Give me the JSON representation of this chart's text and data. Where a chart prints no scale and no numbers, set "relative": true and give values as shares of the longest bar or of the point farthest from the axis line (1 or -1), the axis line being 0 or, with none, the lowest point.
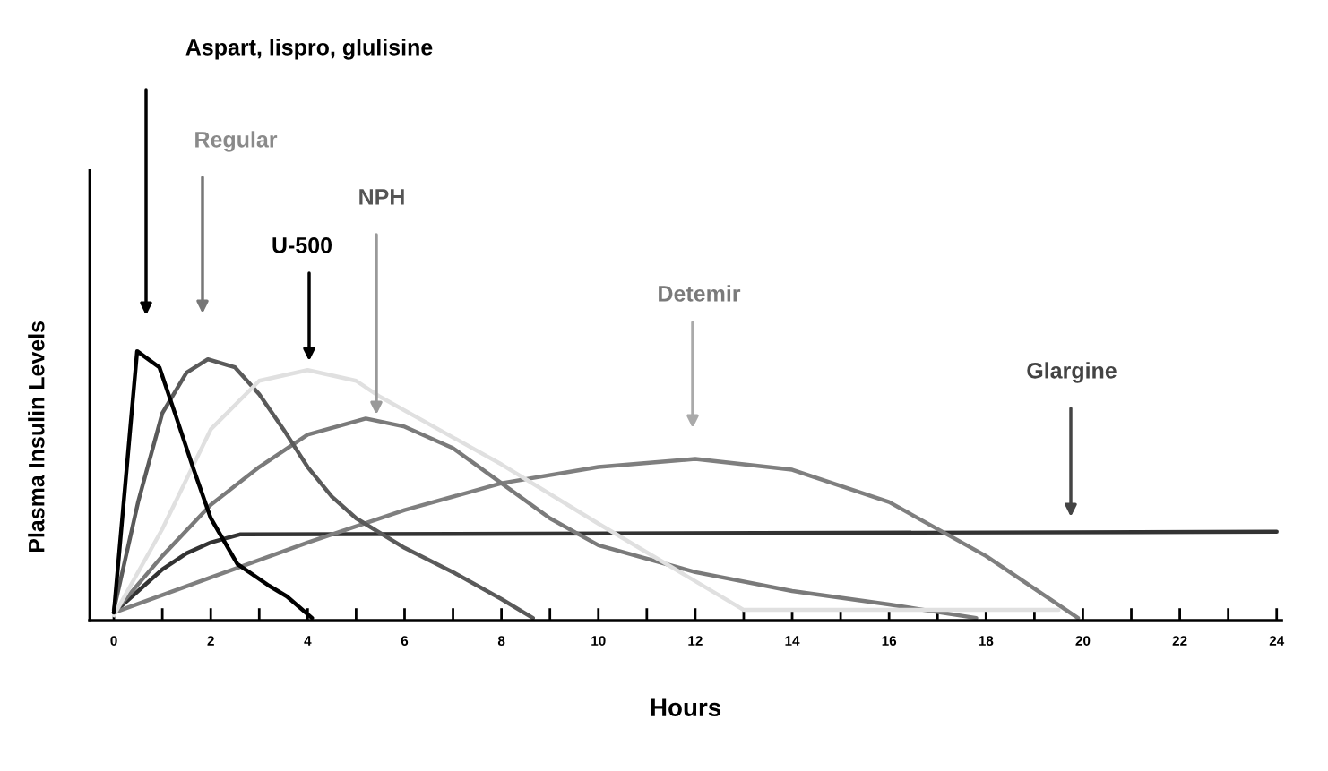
{
  "chart_data": {
    "type": "line",
    "relative": true,
    "xlabel": "Hours",
    "ylabel": "Plasma Insulin Levels",
    "xlim": [
      -0.5,
      24.1
    ],
    "xticks": [
      0,
      {
        "value": 1,
        "label": null
      },
      2,
      {
        "value": 3,
        "label": null
      },
      4,
      {
        "value": 5,
        "label": null
      },
      6,
      {
        "value": 7,
        "label": null
      },
      8,
      {
        "value": 9,
        "label": null
      },
      10,
      {
        "value": 11,
        "label": null
      },
      12,
      {
        "value": 13,
        "label": null
      },
      14,
      {
        "value": 15,
        "label": null
      },
      16,
      {
        "value": 17,
        "label": null
      },
      18,
      {
        "value": 19,
        "label": null
      },
      20,
      {
        "value": 21,
        "label": null
      },
      22,
      {
        "value": 23,
        "label": null
      },
      24
    ],
    "grid": false,
    "legend": false,
    "marker": "none",
    "line_style": "solid",
    "series": [
      {
        "color": "#333333",
        "x": [
          0,
          0.5,
          1,
          1.5,
          2,
          2.6,
          24
        ],
        "values": [
          0.03,
          0.11,
          0.19,
          0.25,
          0.29,
          0.32,
          0.33
        ]
      },
      {
        "color": "#7f7f7f",
        "x": [
          0,
          2,
          4,
          6,
          8,
          10,
          12,
          14,
          16,
          18,
          19.9
        ],
        "values": [
          0.03,
          0.16,
          0.29,
          0.41,
          0.51,
          0.57,
          0.6,
          0.56,
          0.44,
          0.24,
          0.01
        ]
      },
      {
        "color": "#7a7a7a",
        "x": [
          0,
          1,
          2,
          3,
          4,
          5.2,
          6,
          7,
          8,
          9,
          10,
          12,
          14,
          16,
          17.8
        ],
        "values": [
          0.03,
          0.24,
          0.43,
          0.57,
          0.69,
          0.75,
          0.72,
          0.64,
          0.51,
          0.38,
          0.28,
          0.18,
          0.11,
          0.06,
          0.01
        ]
      },
      {
        "color": "#5a5a5a",
        "x": [
          0,
          0.5,
          1,
          1.5,
          1.94,
          2.5,
          3,
          3.5,
          4,
          4.5,
          5,
          6,
          7,
          8,
          8.65
        ],
        "values": [
          0.04,
          0.44,
          0.77,
          0.92,
          0.97,
          0.94,
          0.84,
          0.71,
          0.57,
          0.46,
          0.38,
          0.27,
          0.18,
          0.08,
          0.01
        ]
      },
      {
        "color": "#e0e0e0",
        "x": [
          0,
          1,
          2,
          3,
          4,
          5,
          5.5,
          8,
          10,
          13,
          19.5
        ],
        "values": [
          0.02,
          0.34,
          0.71,
          0.89,
          0.93,
          0.89,
          0.83,
          0.58,
          0.36,
          0.04,
          0.04
        ]
      },
      {
        "color": "#000000",
        "x": [
          0,
          0.48,
          0.94,
          1.26,
          1.63,
          2.0,
          2.55,
          3.2,
          3.57,
          4.09
        ],
        "values": [
          0.03,
          1.0,
          0.94,
          0.77,
          0.57,
          0.38,
          0.21,
          0.13,
          0.09,
          0.01
        ]
      }
    ],
    "annotations": [
      "Aspart, lispro, glulisine",
      "Regular",
      "U-500",
      "NPH",
      "Detemir",
      "Glargine"
    ]
  }
}
